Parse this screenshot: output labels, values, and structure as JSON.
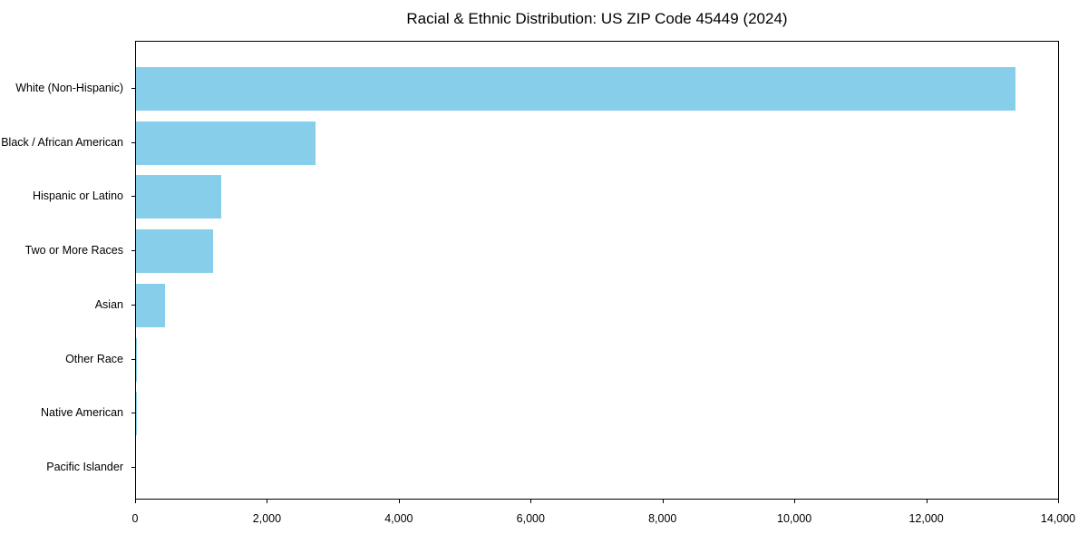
{
  "chart_data": {
    "type": "bar",
    "orientation": "horizontal",
    "title": "Racial & Ethnic Distribution: US ZIP Code 45449 (2024)",
    "categories": [
      "White (Non-Hispanic)",
      "Black / African American",
      "Hispanic or Latino",
      "Two or More Races",
      "Asian",
      "Other Race",
      "Native American",
      "Pacific Islander"
    ],
    "values": [
      13350,
      2730,
      1290,
      1170,
      440,
      15,
      5,
      0
    ],
    "xlabel": "",
    "ylabel": "",
    "xlim": [
      0,
      14000
    ],
    "xticks": [
      0,
      2000,
      4000,
      6000,
      8000,
      10000,
      12000,
      14000
    ],
    "xtick_labels": [
      "0",
      "2,000",
      "4,000",
      "6,000",
      "8,000",
      "10,000",
      "12,000",
      "14,000"
    ],
    "grid": false,
    "legend": null,
    "bar_color": "#87CEEB",
    "axis_color": "#000000",
    "background_color": "#ffffff"
  }
}
